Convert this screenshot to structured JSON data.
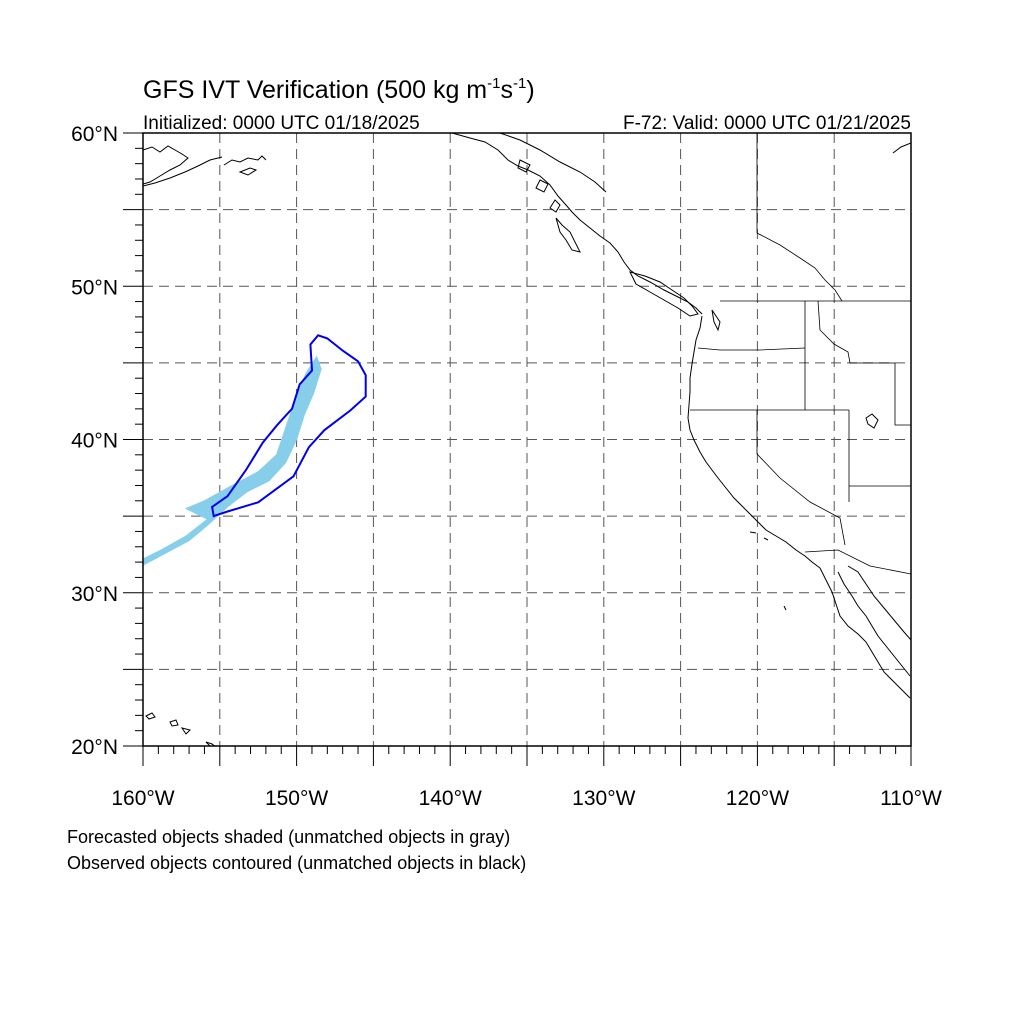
{
  "title": {
    "main_prefix": "GFS IVT Verification (500 kg m",
    "exp1": "-1",
    "mid": "s",
    "exp2": "-1",
    "suffix": ")"
  },
  "subtitle": {
    "left": "Initialized: 0000 UTC 01/18/2025",
    "right": "F-72: Valid: 0000 UTC 01/21/2025"
  },
  "map": {
    "lon_range": [
      -160,
      -110
    ],
    "lat_range": [
      20,
      60
    ],
    "grid": {
      "lon_step": 5,
      "lat_step": 5,
      "style": "dashed"
    },
    "lat_labels": [
      {
        "lat": 60,
        "text": "60°N"
      },
      {
        "lat": 50,
        "text": "50°N"
      },
      {
        "lat": 40,
        "text": "40°N"
      },
      {
        "lat": 30,
        "text": "30°N"
      },
      {
        "lat": 20,
        "text": "20°N"
      }
    ],
    "lon_labels": [
      {
        "lon": -160,
        "text": "160°W"
      },
      {
        "lon": -150,
        "text": "150°W"
      },
      {
        "lon": -140,
        "text": "140°W"
      },
      {
        "lon": -130,
        "text": "130°W"
      },
      {
        "lon": -120,
        "text": "120°W"
      },
      {
        "lon": -110,
        "text": "110°W"
      }
    ],
    "colors": {
      "forecast_fill": "#87ceeb",
      "observed_contour": "#0000ee",
      "coastline": "#000000",
      "grid": "#555555"
    },
    "forecast_object": [
      [
        -160.0,
        31.8
      ],
      [
        -158.5,
        32.6
      ],
      [
        -157.0,
        33.4
      ],
      [
        -155.8,
        34.4
      ],
      [
        -154.5,
        35.6
      ],
      [
        -153.2,
        36.6
      ],
      [
        -151.8,
        37.3
      ],
      [
        -150.7,
        38.5
      ],
      [
        -150.0,
        40.0
      ],
      [
        -149.5,
        41.6
      ],
      [
        -148.9,
        43.0
      ],
      [
        -148.4,
        44.6
      ],
      [
        -148.7,
        45.4
      ],
      [
        -149.4,
        44.3
      ],
      [
        -150.0,
        42.8
      ],
      [
        -150.6,
        41.1
      ],
      [
        -151.3,
        39.0
      ],
      [
        -152.5,
        37.9
      ],
      [
        -154.2,
        37.0
      ],
      [
        -156.0,
        36.0
      ],
      [
        -157.2,
        35.5
      ],
      [
        -155.8,
        34.8
      ],
      [
        -157.2,
        33.7
      ],
      [
        -158.8,
        32.8
      ],
      [
        -160.0,
        32.2
      ]
    ],
    "observed_object": [
      [
        -155.4,
        35.0
      ],
      [
        -155.5,
        35.6
      ],
      [
        -154.5,
        36.3
      ],
      [
        -153.3,
        38.0
      ],
      [
        -152.2,
        39.8
      ],
      [
        -151.3,
        40.9
      ],
      [
        -150.3,
        42.0
      ],
      [
        -149.8,
        43.6
      ],
      [
        -149.0,
        44.5
      ],
      [
        -149.1,
        46.2
      ],
      [
        -148.6,
        46.8
      ],
      [
        -148.0,
        46.6
      ],
      [
        -147.0,
        45.8
      ],
      [
        -146.0,
        45.1
      ],
      [
        -145.5,
        44.2
      ],
      [
        -145.5,
        42.8
      ],
      [
        -146.5,
        41.9
      ],
      [
        -148.2,
        40.6
      ],
      [
        -149.2,
        39.5
      ],
      [
        -150.2,
        37.6
      ],
      [
        -152.5,
        35.9
      ],
      [
        -154.5,
        35.3
      ],
      [
        -155.4,
        35.0
      ]
    ]
  },
  "caption": {
    "line1": "Forecasted objects shaded (unmatched objects in gray)",
    "line2": "Observed objects contoured (unmatched objects in black)"
  }
}
